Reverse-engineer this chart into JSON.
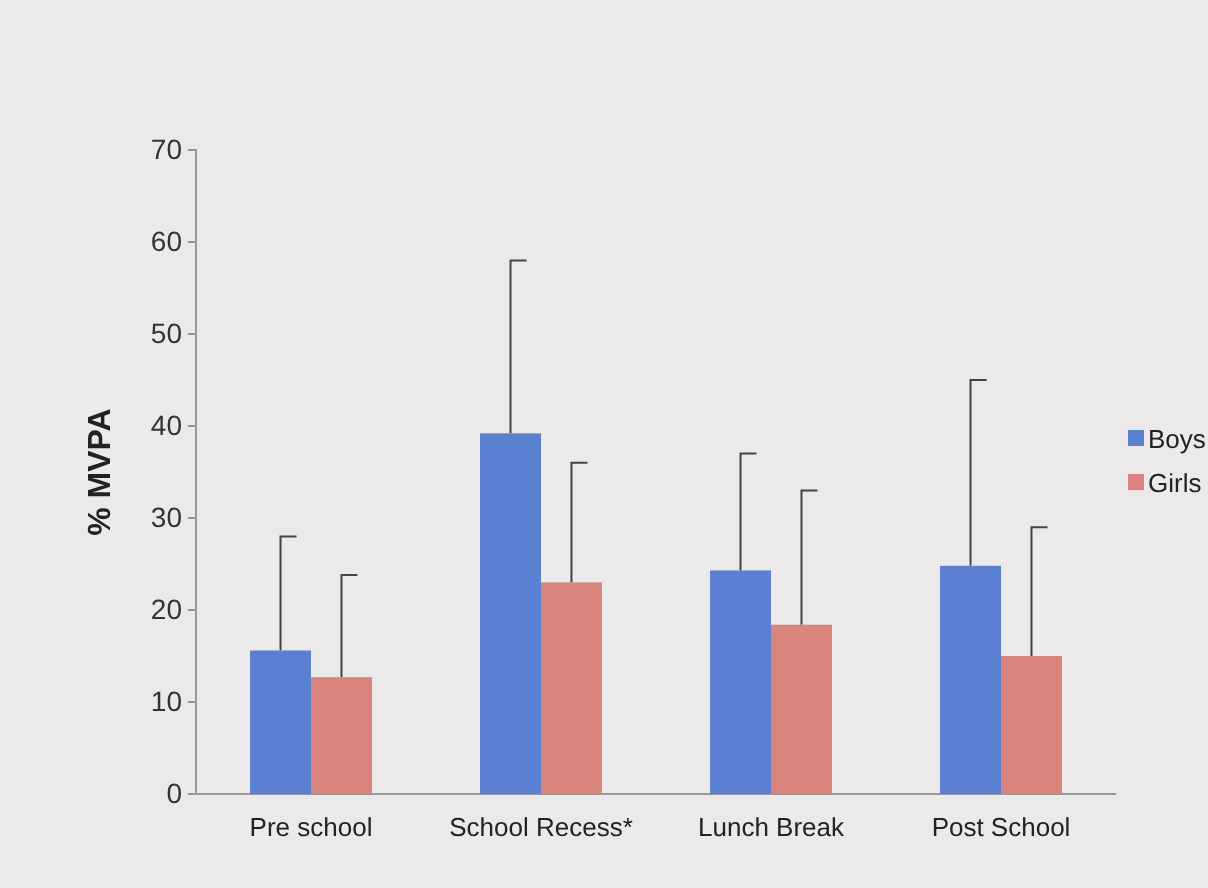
{
  "chart_data": {
    "type": "bar",
    "ylabel": "% MVPA",
    "categories": [
      "Pre school",
      "School Recess*",
      "Lunch Break",
      "Post School"
    ],
    "series": [
      {
        "name": "Boys",
        "color": "#5b7fd1",
        "values": [
          15.6,
          39.2,
          24.3,
          24.8
        ],
        "errors": [
          [
            15.6,
            28
          ],
          [
            39.2,
            58
          ],
          [
            24.3,
            37
          ],
          [
            24.8,
            45
          ]
        ]
      },
      {
        "name": "Girls",
        "color": "#d8837b",
        "values": [
          12.7,
          23,
          18.4,
          15
        ],
        "errors": [
          [
            12.7,
            23.8
          ],
          [
            23,
            36
          ],
          [
            18.4,
            33
          ],
          [
            15,
            29
          ]
        ]
      }
    ],
    "ylim": [
      0,
      70
    ],
    "yticks": [
      0,
      10,
      20,
      30,
      40,
      50,
      60,
      70
    ],
    "grid": false,
    "legend": "right"
  }
}
